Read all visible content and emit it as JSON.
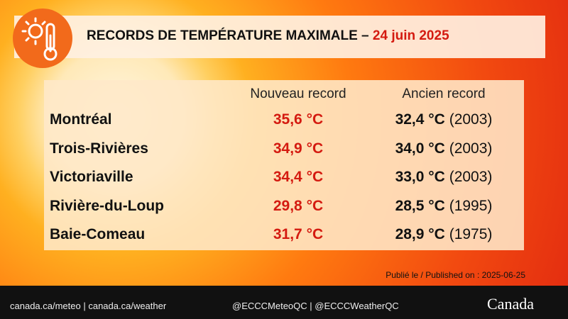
{
  "header": {
    "title": "RECORDS DE TEMPÉRATURE MAXIMALE –",
    "date": "24 juin 2025"
  },
  "table": {
    "columns": [
      "Nouveau record",
      "Ancien record"
    ],
    "rows": [
      {
        "city": "Montréal",
        "new_record": "35,6 °C",
        "old_record": "32,4 °C",
        "old_year": "(2003)"
      },
      {
        "city": "Trois-Rivières",
        "new_record": "34,9 °C",
        "old_record": "34,0 °C",
        "old_year": "(2003)"
      },
      {
        "city": "Victoriaville",
        "new_record": "34,4 °C",
        "old_record": "33,0 °C",
        "old_year": "(2003)"
      },
      {
        "city": "Rivière-du-Loup",
        "new_record": "29,8 °C",
        "old_record": "28,5 °C",
        "old_year": "(1995)"
      },
      {
        "city": "Baie-Comeau",
        "new_record": "31,7 °C",
        "old_record": "28,9 °C",
        "old_year": "(1975)"
      }
    ]
  },
  "footer": {
    "published": "Publié le / Published on : 2025-06-25",
    "links": "canada.ca/meteo | canada.ca/weather",
    "social": "@ECCCMeteoQC | @ECCCWeatherQC",
    "wordmark": "Canada"
  }
}
